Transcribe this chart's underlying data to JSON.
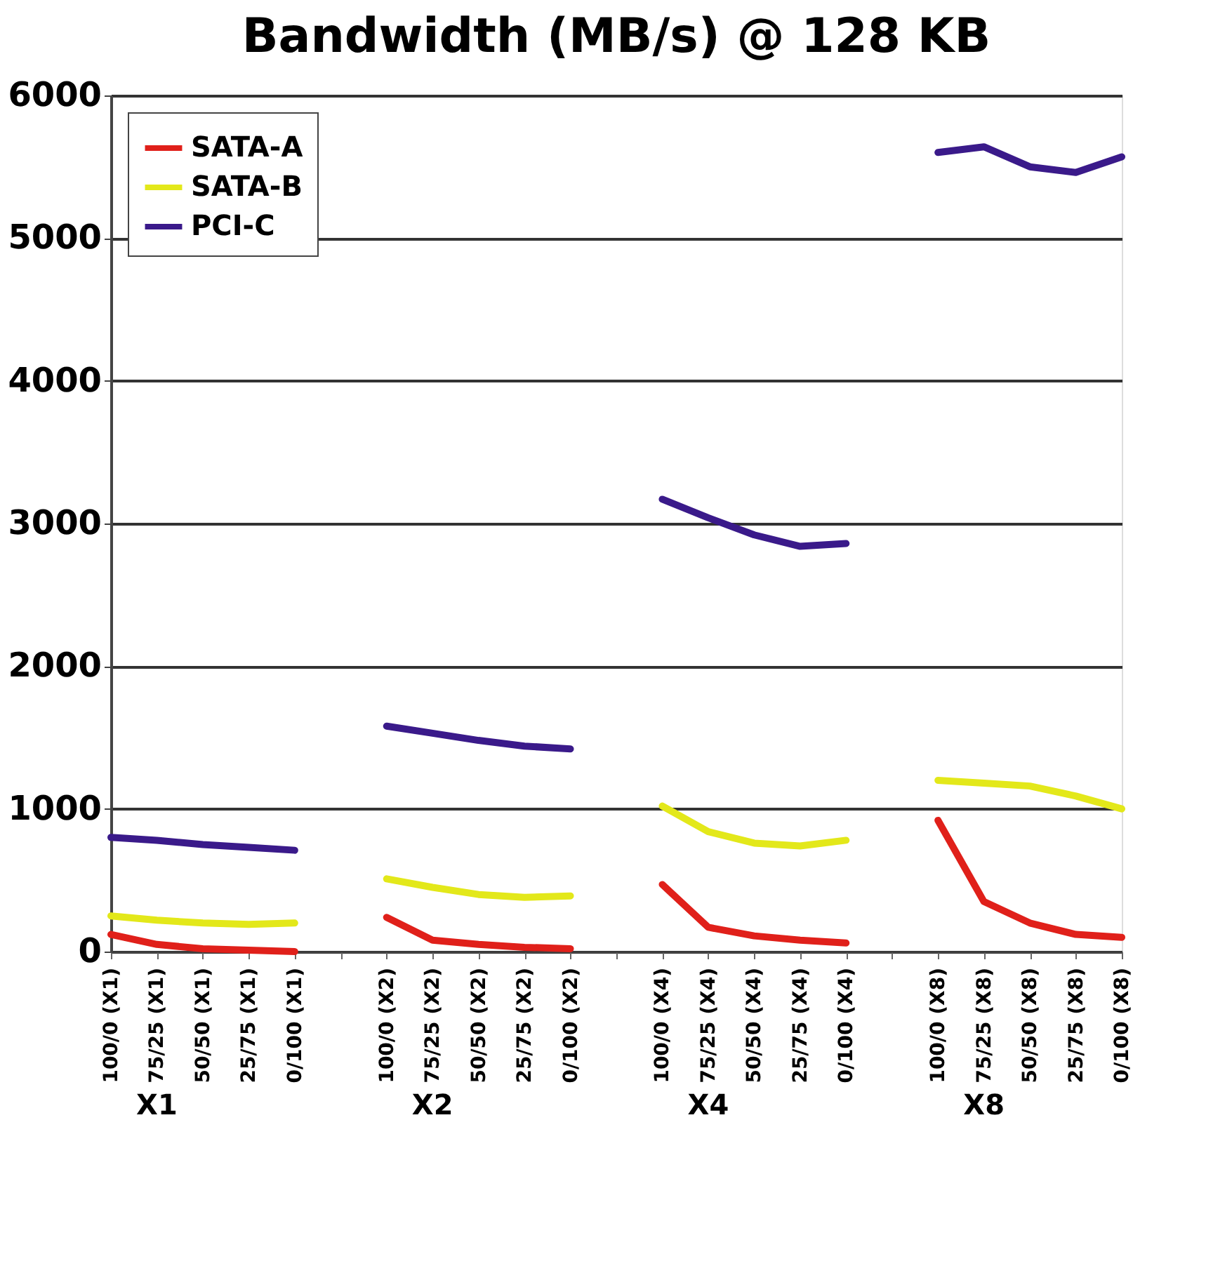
{
  "chart_data": {
    "type": "line",
    "title": "Bandwidth (MB/s) @ 128 KB",
    "categories": [
      "100/0 (X1)",
      "75/25 (X1)",
      "50/50 (X1)",
      "25/75 (X1)",
      "0/100 (X1)",
      null,
      "100/0 (X2)",
      "75/25 (X2)",
      "50/50 (X2)",
      "25/75 (X2)",
      "0/100 (X2)",
      null,
      "100/0 (X4)",
      "75/25 (X4)",
      "50/50 (X4)",
      "25/75 (X4)",
      "0/100 (X4)",
      null,
      "100/0 (X8)",
      "75/25 (X8)",
      "50/50 (X8)",
      "25/75 (X8)",
      "0/100 (X8)"
    ],
    "series": [
      {
        "name": "SATA-A",
        "color": "#e0201a",
        "values": [
          120,
          50,
          20,
          10,
          0,
          null,
          240,
          80,
          50,
          30,
          20,
          null,
          470,
          170,
          110,
          80,
          60,
          null,
          920,
          350,
          200,
          120,
          100
        ]
      },
      {
        "name": "SATA-B",
        "color": "#e3e81a",
        "values": [
          250,
          220,
          200,
          190,
          200,
          null,
          510,
          450,
          400,
          380,
          390,
          null,
          1020,
          840,
          760,
          740,
          780,
          null,
          1200,
          1180,
          1160,
          1090,
          1000
        ]
      },
      {
        "name": "PCI-C",
        "color": "#3a1a8a",
        "values": [
          800,
          780,
          750,
          730,
          710,
          null,
          1580,
          1530,
          1480,
          1440,
          1420,
          null,
          3170,
          3040,
          2920,
          2840,
          2860,
          null,
          5600,
          5640,
          5500,
          5460,
          5570
        ]
      }
    ],
    "annotations": [
      "X1",
      "X2",
      "X4",
      "X8"
    ],
    "ylim": [
      0,
      6000
    ],
    "yticks": [
      0,
      1000,
      2000,
      3000,
      4000,
      5000,
      6000
    ],
    "grid": "y",
    "legend": "top left",
    "line_style": "solid",
    "marker": "none"
  }
}
